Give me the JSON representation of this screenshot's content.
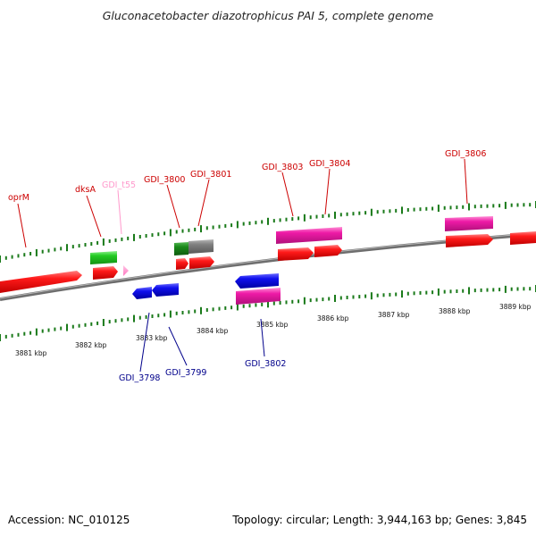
{
  "title": "Gluconacetobacter diazotrophicus PAI 5, complete genome",
  "footer": {
    "accession": "Accession: NC_010125",
    "summary": "Topology: circular; Length: 3,944,163 bp; Genes: 3,845"
  },
  "colors": {
    "gene_red": "#ff0000",
    "gene_blue": "#0000ee",
    "gene_magenta": "#ee1aa6",
    "gene_green": "#22cc22",
    "gene_darkgreen": "#1a8a1a",
    "gene_grey": "#808080",
    "trna_pink": "#ff88cc",
    "label_red": "#cc0000",
    "label_blue": "#00008b",
    "label_pink": "#ff99cc",
    "tick_green": "#1a7a1a"
  },
  "scale": {
    "unit": "kbp",
    "ticks": [
      {
        "kbp": 3881,
        "label": "3881 kbp"
      },
      {
        "kbp": 3882,
        "label": "3882 kbp"
      },
      {
        "kbp": 3883,
        "label": "3883 kbp"
      },
      {
        "kbp": 3884,
        "label": "3884 kbp"
      },
      {
        "kbp": 3885,
        "label": "3885 kbp"
      },
      {
        "kbp": 3886,
        "label": "3886 kbp"
      },
      {
        "kbp": 3887,
        "label": "3887 kbp"
      },
      {
        "kbp": 3888,
        "label": "3888 kbp"
      },
      {
        "kbp": 3889,
        "label": "3889 kbp"
      }
    ]
  },
  "genes": [
    {
      "name": "oprM",
      "label": "oprM",
      "strand": "+",
      "color": "gene_red",
      "label_color": "label_red"
    },
    {
      "name": "dksA",
      "label": "dksA",
      "strand": "+",
      "color": "gene_red",
      "label_color": "label_red"
    },
    {
      "name": "GDI_t55",
      "label": "GDI_t55",
      "strand": "+",
      "color": "trna_pink",
      "label_color": "label_pink"
    },
    {
      "name": "GDI_3798",
      "label": "GDI_3798",
      "strand": "-",
      "color": "gene_blue",
      "label_color": "label_blue"
    },
    {
      "name": "GDI_3799",
      "label": "GDI_3799",
      "strand": "-",
      "color": "gene_blue",
      "label_color": "label_blue"
    },
    {
      "name": "GDI_3800",
      "label": "GDI_3800",
      "strand": "+",
      "color": "gene_red",
      "label_color": "label_red"
    },
    {
      "name": "GDI_3801",
      "label": "GDI_3801",
      "strand": "+",
      "color": "gene_red",
      "label_color": "label_red"
    },
    {
      "name": "GDI_3802",
      "label": "GDI_3802",
      "strand": "-",
      "color": "gene_blue",
      "label_color": "label_blue"
    },
    {
      "name": "GDI_3803",
      "label": "GDI_3803",
      "strand": "+",
      "color": "gene_red",
      "label_color": "label_red"
    },
    {
      "name": "GDI_3804",
      "label": "GDI_3804",
      "strand": "+",
      "color": "gene_red",
      "label_color": "label_red"
    },
    {
      "name": "GDI_3806",
      "label": "GDI_3806",
      "strand": "+",
      "color": "gene_red",
      "label_color": "label_red"
    }
  ]
}
